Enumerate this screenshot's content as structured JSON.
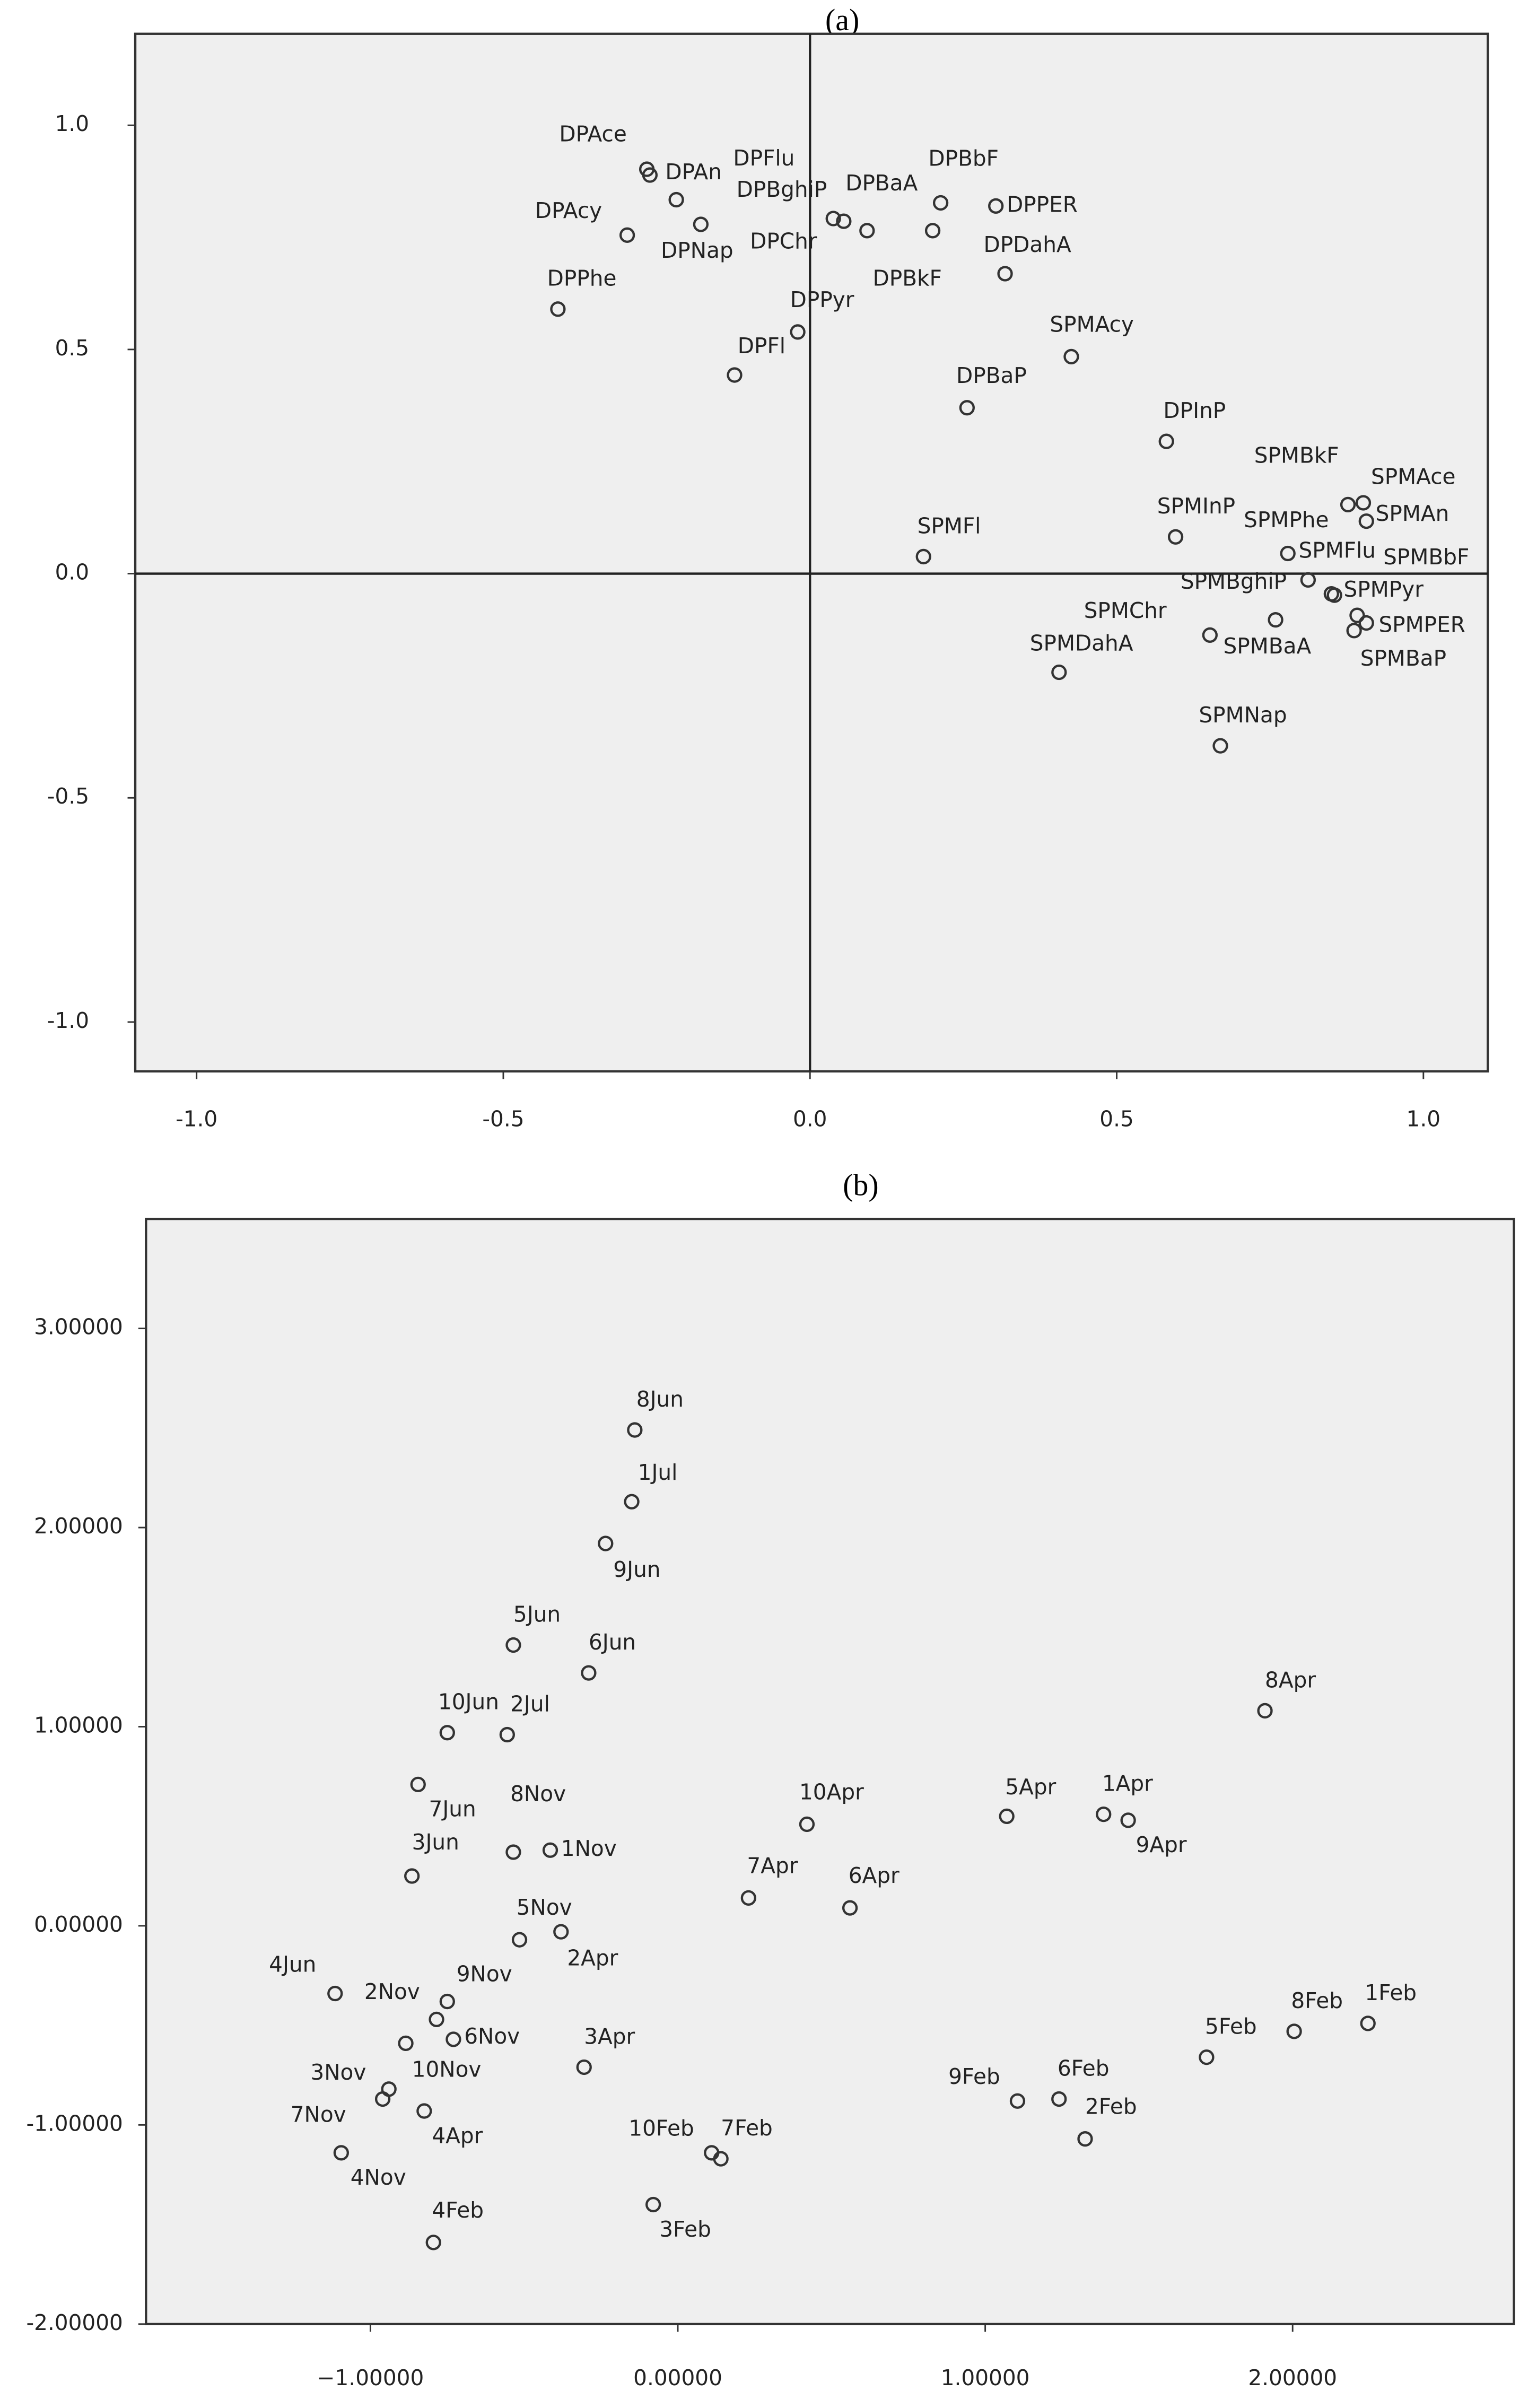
{
  "chart_data": [
    {
      "type": "scatter",
      "title": "(a)",
      "zero_lines": true,
      "background": "#efefef",
      "marker_color": "#333333",
      "xlim": [
        -1.1,
        1.105
      ],
      "ylim": [
        -1.11,
        1.204
      ],
      "xticks": [
        {
          "value": -1,
          "label": "-1.0"
        },
        {
          "value": -0.5,
          "label": "-0.5"
        },
        {
          "value": 0,
          "label": "0.0"
        },
        {
          "value": 0.5,
          "label": "0.5"
        },
        {
          "value": 1,
          "label": "1.0"
        }
      ],
      "yticks": [
        {
          "value": -1,
          "label": "-1.0"
        },
        {
          "value": -0.5,
          "label": "-0.5"
        },
        {
          "value": 0,
          "label": "0.0"
        },
        {
          "value": 0.5,
          "label": "0.5"
        },
        {
          "value": 1,
          "label": "1.0"
        }
      ],
      "labels": [
        "DPAce",
        "DPAn",
        "DPFlu",
        "DPBghiP",
        "DPBaA",
        "DPBbF",
        "DPPER",
        "DPAcy",
        "DPNap",
        "DPChr",
        "DPBkF",
        "DPDahA",
        "DPPhe",
        "DPPyr",
        "DPFl",
        "DPBaP",
        "DPInP",
        "SPMAcy",
        "SPMBkF",
        "SPMAce",
        "SPMInP",
        "SPMPhe",
        "SPMAn",
        "SPMFl",
        "SPMFlu",
        "SPMBbF",
        "SPMBghiP",
        "SPMPyr",
        "SPMChr",
        "SPMPER",
        "SPMBaA",
        "SPMDahA",
        "SPMBaP",
        "SPMNap"
      ],
      "x": [
        -0.266,
        -0.261,
        -0.218,
        0.038,
        0.093,
        0.213,
        0.303,
        -0.298,
        -0.178,
        0.055,
        0.2,
        0.318,
        -0.411,
        -0.02,
        -0.123,
        0.256,
        0.581,
        0.426,
        0.877,
        0.902,
        0.596,
        0.855,
        0.907,
        0.185,
        0.779,
        0.892,
        0.812,
        0.85,
        0.652,
        0.907,
        0.759,
        0.406,
        0.887,
        0.669
      ],
      "values": [
        0.902,
        0.889,
        0.834,
        0.792,
        0.765,
        0.827,
        0.82,
        0.755,
        0.779,
        0.786,
        0.765,
        0.669,
        0.59,
        0.539,
        0.443,
        0.37,
        0.295,
        0.484,
        0.154,
        0.158,
        0.082,
        -0.048,
        0.117,
        0.038,
        0.045,
        -0.093,
        -0.014,
        -0.045,
        -0.137,
        -0.11,
        -0.103,
        -0.22,
        -0.127,
        -0.384
      ]
    },
    {
      "type": "scatter",
      "title": "(b)",
      "zero_lines": false,
      "background": "#efefef",
      "marker_color": "#333333",
      "xlim": [
        -1.73,
        2.72
      ],
      "ylim": [
        -2.0,
        3.55
      ],
      "xticks": [
        {
          "value": -1,
          "label": "−1.00000"
        },
        {
          "value": 0,
          "label": "0.00000"
        },
        {
          "value": 1,
          "label": "1.00000"
        },
        {
          "value": 2,
          "label": "2.00000"
        }
      ],
      "yticks": [
        {
          "value": -2,
          "label": "-2.00000"
        },
        {
          "value": -1,
          "label": "-1.00000"
        },
        {
          "value": 0,
          "label": "0.00000"
        },
        {
          "value": 1,
          "label": "1.00000"
        },
        {
          "value": 2,
          "label": "2.00000"
        },
        {
          "value": 3,
          "label": "3.00000"
        }
      ],
      "labels": [
        "8Jun",
        "1Jul",
        "9Jun",
        "5Jun",
        "6Jun",
        "10Jun",
        "2Jul",
        "8Apr",
        "7Jun",
        "10Apr",
        "5Apr",
        "1Apr",
        "9Apr",
        "8Nov",
        "1Nov",
        "3Jun",
        "7Apr",
        "6Apr",
        "5Nov",
        "2Apr",
        "4Jun",
        "9Nov",
        "2Nov",
        "6Nov",
        "3Nov",
        "3Apr",
        "10Nov",
        "7Nov",
        "4Apr",
        "4Nov",
        "9Feb",
        "6Feb",
        "2Feb",
        "5Feb",
        "8Feb",
        "1Feb",
        "10Feb",
        "7Feb",
        "3Feb",
        "4Feb"
      ],
      "x": [
        -0.14,
        -0.15,
        -0.235,
        -0.535,
        -0.29,
        -0.75,
        -0.555,
        1.91,
        -0.845,
        0.42,
        1.07,
        1.385,
        1.465,
        -0.535,
        -0.415,
        -0.865,
        0.23,
        0.56,
        -0.515,
        -0.38,
        -1.115,
        -0.75,
        -0.785,
        -0.73,
        -0.94,
        -0.305,
        -0.885,
        -0.96,
        -0.825,
        -1.095,
        1.105,
        1.24,
        1.325,
        1.72,
        2.005,
        2.245,
        0.11,
        0.14,
        -0.08,
        -0.795
      ],
      "values": [
        2.49,
        2.13,
        1.92,
        1.41,
        1.27,
        0.97,
        0.96,
        1.08,
        0.71,
        0.51,
        0.55,
        0.56,
        0.53,
        0.37,
        0.38,
        0.25,
        0.14,
        0.09,
        -0.07,
        -0.03,
        -0.34,
        -0.38,
        -0.47,
        -0.57,
        -0.82,
        -0.71,
        -0.59,
        -0.87,
        -0.93,
        -1.14,
        -0.88,
        -0.87,
        -1.07,
        -0.66,
        -0.53,
        -0.49,
        -1.14,
        -1.17,
        -1.4,
        -1.59
      ]
    }
  ]
}
